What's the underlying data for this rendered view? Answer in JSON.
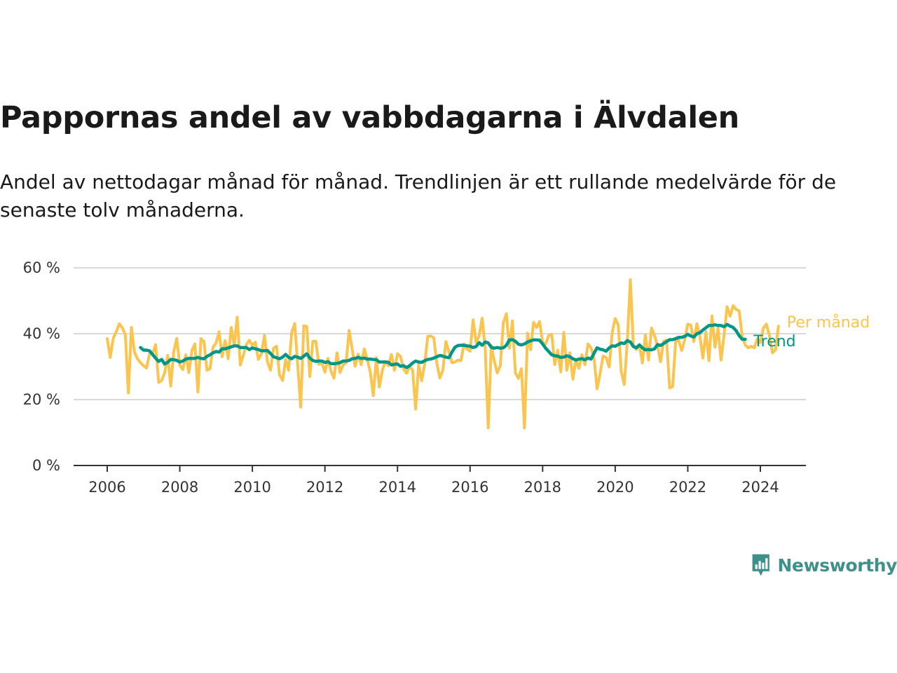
{
  "header": {
    "title": "Pappornas andel av vabbdagarna i Älvdalen",
    "subtitle": "Andel av nettodagar månad för månad. Trendlinjen är ett rullande medelvärde för de senaste tolv månaderna."
  },
  "brand": {
    "name": "Newsworthy",
    "icon": "newsworthy-logo-icon",
    "color": "#3f8f8b"
  },
  "chart_data": {
    "type": "line",
    "xlabel": "",
    "ylabel": "",
    "x_ticks": [
      "2006",
      "2008",
      "2010",
      "2012",
      "2014",
      "2016",
      "2018",
      "2020",
      "2022",
      "2024"
    ],
    "y_ticks": [
      "0 %",
      "20 %",
      "40 %",
      "60 %"
    ],
    "ylim": [
      0,
      60
    ],
    "grid": true,
    "legend": "inline labels at right end of lines",
    "series": [
      {
        "name": "Per månad",
        "color": "#fbc44f",
        "start": "2006-01",
        "values": [
          38.5,
          32.8,
          38.6,
          40.6,
          43.0,
          41.8,
          39.6,
          22.0,
          41.9,
          34.5,
          32.4,
          31.2,
          30.3,
          29.6,
          33.9,
          33.8,
          36.7,
          25.2,
          25.8,
          28.1,
          33.4,
          24.1,
          34.5,
          38.6,
          30.4,
          29.1,
          33.6,
          28.2,
          34.9,
          36.9,
          22.3,
          38.5,
          37.6,
          28.9,
          29.4,
          35.9,
          37.2,
          40.6,
          33.0,
          37.9,
          32.4,
          41.9,
          36.4,
          45.0,
          30.5,
          33.4,
          36.7,
          38.0,
          36.5,
          37.4,
          32.2,
          33.9,
          39.5,
          31.4,
          28.9,
          35.6,
          36.2,
          27.5,
          25.8,
          32.2,
          28.9,
          40.3,
          43.1,
          30.5,
          17.7,
          42.4,
          42.2,
          27.0,
          37.7,
          37.7,
          30.7,
          31.2,
          28.3,
          32.5,
          28.6,
          26.5,
          34.2,
          28.2,
          30.5,
          31.2,
          41.0,
          35.3,
          30.1,
          33.8,
          30.6,
          35.4,
          32.2,
          28.4,
          21.2,
          32.7,
          23.8,
          28.9,
          31.6,
          30.3,
          33.7,
          28.9,
          33.9,
          33.1,
          29.3,
          28.0,
          30.1,
          28.9,
          17.1,
          30.7,
          25.7,
          30.9,
          39.2,
          39.3,
          38.7,
          31.1,
          26.6,
          28.8,
          37.6,
          34.6,
          31.2,
          31.4,
          32.0,
          31.8,
          36.9,
          35.3,
          34.7,
          44.2,
          37.4,
          39.3,
          44.7,
          35.5,
          11.4,
          36.4,
          31.7,
          28.1,
          30.3,
          43.3,
          46.1,
          35.6,
          43.9,
          28.0,
          26.4,
          29.4,
          11.4,
          40.2,
          35.1,
          43.5,
          41.9,
          43.7,
          37.3,
          36.9,
          39.5,
          39.8,
          30.6,
          35.0,
          28.4,
          40.4,
          28.9,
          34.2,
          26.2,
          32.2,
          29.5,
          33.6,
          30.6,
          36.9,
          35.7,
          32.6,
          23.3,
          27.9,
          33.2,
          32.8,
          29.9,
          40.4,
          44.6,
          42.7,
          28.5,
          24.6,
          37.4,
          56.4,
          36.6,
          35.2,
          36.7,
          31.1,
          39.6,
          32.0,
          41.7,
          39.4,
          36.3,
          31.5,
          37.7,
          38.1,
          23.5,
          24.0,
          37.7,
          38.0,
          34.9,
          38.2,
          42.9,
          42.6,
          37.6,
          43.0,
          39.3,
          32.6,
          40.6,
          31.8,
          45.4,
          35.9,
          41.6,
          32.0,
          39.5,
          48.2,
          45.3,
          48.5,
          47.4,
          46.9,
          39.2,
          36.6,
          35.7,
          36.2,
          35.7,
          38.5,
          37.3,
          41.7,
          42.9,
          39.5,
          34.2,
          35.1,
          42.3
        ]
      },
      {
        "name": "Trend",
        "color": "#009688",
        "start": "2006-12",
        "values": [
          35.8,
          35.0,
          35.0,
          34.8,
          33.7,
          32.6,
          31.6,
          32.2,
          30.8,
          31.3,
          32.2,
          32.1,
          31.9,
          31.4,
          31.7,
          32.3,
          32.5,
          32.5,
          32.5,
          32.8,
          32.5,
          32.4,
          33.1,
          33.6,
          34.2,
          34.6,
          34.4,
          35.4,
          35.4,
          35.7,
          36.0,
          36.3,
          36.3,
          35.8,
          35.8,
          35.8,
          35.2,
          35.7,
          35.4,
          35.2,
          34.8,
          34.8,
          34.9,
          34.0,
          33.0,
          32.7,
          32.4,
          32.9,
          33.7,
          32.8,
          32.4,
          33.1,
          32.9,
          32.5,
          33.2,
          33.9,
          32.6,
          31.9,
          31.6,
          31.7,
          31.7,
          31.3,
          31.5,
          30.9,
          30.9,
          31.0,
          31.2,
          31.7,
          31.7,
          31.9,
          32.4,
          32.5,
          32.8,
          32.5,
          32.6,
          32.3,
          32.3,
          32.2,
          32.1,
          31.4,
          31.4,
          31.4,
          31.3,
          30.5,
          30.7,
          30.8,
          30.1,
          30.3,
          29.7,
          30.3,
          31.1,
          31.7,
          31.4,
          31.3,
          31.8,
          32.2,
          32.3,
          32.6,
          33.0,
          33.4,
          33.2,
          32.9,
          32.7,
          34.4,
          35.9,
          36.4,
          36.5,
          36.5,
          36.3,
          36.2,
          35.8,
          36.1,
          37.3,
          36.5,
          37.5,
          37.2,
          35.9,
          35.6,
          35.8,
          35.6,
          35.7,
          36.5,
          38.1,
          38.2,
          37.7,
          36.8,
          36.6,
          36.9,
          37.5,
          37.8,
          38.1,
          38.1,
          38.0,
          36.9,
          35.6,
          34.6,
          33.6,
          33.3,
          33.2,
          32.8,
          32.9,
          33.3,
          33.0,
          32.4,
          32.0,
          32.3,
          32.4,
          32.1,
          32.6,
          32.3,
          34.1,
          35.7,
          35.3,
          35.1,
          34.7,
          35.7,
          36.3,
          36.2,
          36.7,
          37.2,
          37.0,
          37.9,
          37.5,
          36.1,
          35.7,
          36.6,
          35.7,
          35.1,
          35.2,
          35.1,
          35.4,
          36.7,
          36.4,
          37.0,
          37.6,
          38.2,
          38.2,
          38.5,
          38.9,
          38.9,
          39.2,
          39.8,
          39.3,
          39.0,
          40.0,
          40.3,
          41.1,
          41.8,
          42.5,
          42.5,
          42.7,
          42.5,
          42.5,
          42.1,
          42.8,
          42.3,
          41.9,
          40.9,
          39.4,
          38.3,
          38.3
        ]
      }
    ]
  }
}
